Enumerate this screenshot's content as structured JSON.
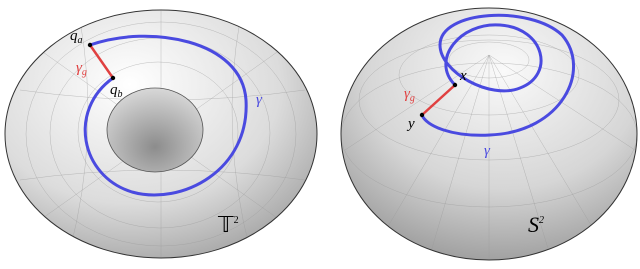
{
  "panels": [
    {
      "labels": {
        "q_a": {
          "base": "q",
          "sub": "a"
        },
        "gamma_g": {
          "base": "γ",
          "sub": "g"
        },
        "q_b": {
          "base": "q",
          "sub": "b"
        },
        "gamma": "γ",
        "space": {
          "base": "𝕋",
          "sup": "2"
        }
      }
    },
    {
      "labels": {
        "x": "x",
        "gamma_g": {
          "base": "γ",
          "sub": "g"
        },
        "y": "y",
        "gamma": "γ",
        "space": {
          "base": "S",
          "sup": "2"
        }
      }
    }
  ]
}
